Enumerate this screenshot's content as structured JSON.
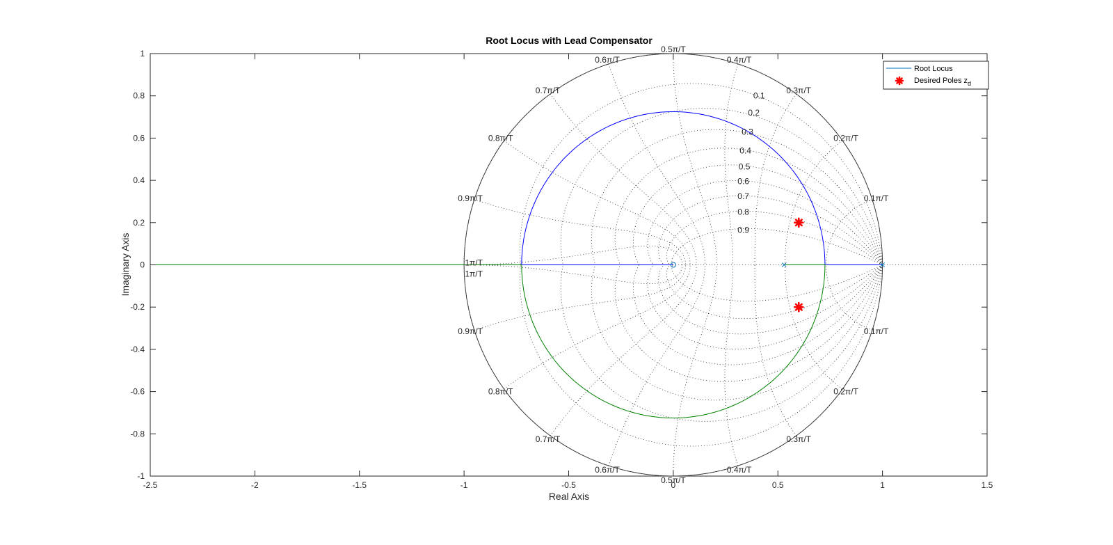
{
  "chart_data": {
    "type": "line",
    "title": "Root Locus with Lead Compensator",
    "xlabel": "Real Axis",
    "ylabel": "Imaginary Axis",
    "xlim": [
      -2.5,
      1.5
    ],
    "ylim": [
      -1,
      1
    ],
    "xticks": [
      "-2.5",
      "-2",
      "-1.5",
      "-1",
      "-0.5",
      "0",
      "0.5",
      "1",
      "1.5"
    ],
    "yticks": [
      "-1",
      "-0.8",
      "-0.6",
      "-0.4",
      "-0.2",
      "0",
      "0.2",
      "0.4",
      "0.6",
      "0.8",
      "1"
    ],
    "grid": "zgrid",
    "legend": {
      "position": "top-right",
      "entries": [
        {
          "label": "Root Locus",
          "color": "#0072BD"
        },
        {
          "label": "Desired Poles z",
          "subscript": "d",
          "color": "#ff0000"
        }
      ]
    },
    "damping_labels": [
      "0.1",
      "0.2",
      "0.3",
      "0.4",
      "0.5",
      "0.6",
      "0.7",
      "0.8",
      "0.9"
    ],
    "frequency_labels": [
      "0.1π/T",
      "0.2π/T",
      "0.3π/T",
      "0.4π/T",
      "0.5π/T",
      "0.6π/T",
      "0.7π/T",
      "0.8π/T",
      "0.9π/T",
      "1π/T"
    ],
    "series": [
      {
        "name": "Root Locus",
        "branch": "upper",
        "color": "#0000ff",
        "description": "real axis segment 1.0 to 0.72, circle of radius 0.725 about 0 through upper half-plane, real axis -0.725 to 0",
        "circle_center": [
          0,
          0
        ],
        "circle_radius": 0.725
      },
      {
        "branch": "lower",
        "color": "#008000",
        "description": "real axis segment 0.53 to 0.72, circle through lower half-plane, real axis -0.725 to -2.5",
        "circle_center": [
          0,
          0
        ],
        "circle_radius": 0.725
      }
    ],
    "poles": [
      [
        1.0,
        0
      ],
      [
        0.53,
        0
      ]
    ],
    "zeros": [
      [
        0,
        0
      ]
    ],
    "desired_poles": [
      [
        0.6,
        0.2
      ],
      [
        0.6,
        -0.2
      ]
    ]
  }
}
